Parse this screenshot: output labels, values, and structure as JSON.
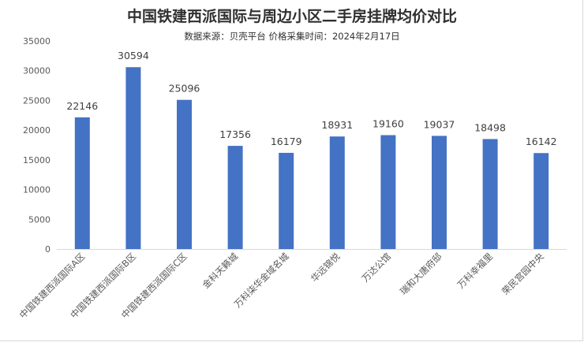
{
  "chart_data": {
    "type": "bar",
    "title": "中国铁建西派国际与周边小区二手房挂牌均价对比",
    "subtitle": "数据来源：贝壳平台  价格采集时间：2024年2月17日",
    "categories": [
      "中国铁建西派国际A区",
      "中国铁建西派国际B区",
      "中国铁建西派国际C区",
      "金科天籁城",
      "万科柒华金域名城",
      "华远锦悦",
      "万达公馆",
      "瑞和大唐府邸",
      "万科幸福里",
      "荣民宫园中央"
    ],
    "values": [
      22146,
      30594,
      25096,
      17356,
      16179,
      18931,
      19160,
      19037,
      18498,
      16142
    ],
    "ylim": [
      0,
      35000
    ],
    "yticks": [
      0,
      5000,
      10000,
      15000,
      20000,
      25000,
      30000,
      35000
    ],
    "xlabel": "",
    "ylabel": "",
    "grid": false,
    "bar_color": "#4472c4"
  }
}
